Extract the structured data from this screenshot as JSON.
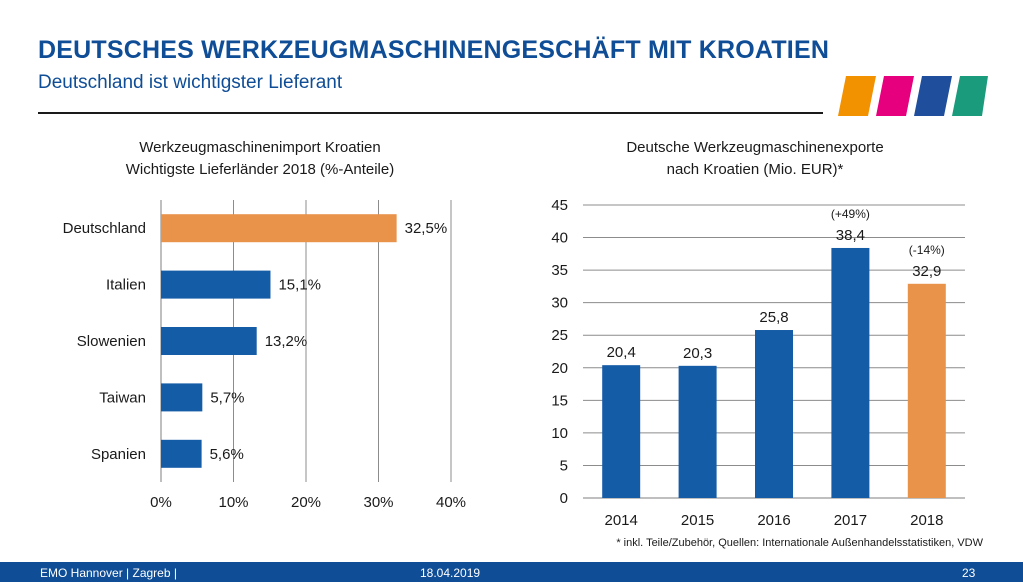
{
  "header": {
    "title": "DEUTSCHES WERKZEUGMASCHINENGESCHÄFT MIT KROATIEN",
    "subtitle": "Deutschland ist wichtigster Lieferant"
  },
  "logo": {
    "icon": "emo-color-stripes-logo",
    "colors": [
      "#f39200",
      "#e6007e",
      "#1f4e9c",
      "#1a9b7c"
    ]
  },
  "footer": {
    "event": "EMO Hannover | Zagreb |",
    "date": "18.04.2019",
    "page": "23"
  },
  "footnote": "* inkl. Teile/Zubehör, Quellen: Internationale Außenhandelsstatistiken, VDW",
  "chart_data": [
    {
      "type": "bar",
      "orientation": "horizontal",
      "title": "Werkzeugmaschinenimport Kroatien",
      "subtitle": "Wichtigste Lieferländer 2018 (%-Anteile)",
      "categories": [
        "Deutschland",
        "Italien",
        "Slowenien",
        "Taiwan",
        "Spanien"
      ],
      "values": [
        32.5,
        15.1,
        13.2,
        5.7,
        5.6
      ],
      "data_labels": [
        "32,5%",
        "15,1%",
        "13,2%",
        "5,7%",
        "5,6%"
      ],
      "xlim": [
        0,
        40
      ],
      "xticks": [
        "0%",
        "10%",
        "20%",
        "30%",
        "40%"
      ],
      "grid": "vertical",
      "colors": [
        "#e8924a",
        "#155ca6",
        "#155ca6",
        "#155ca6",
        "#155ca6"
      ]
    },
    {
      "type": "bar",
      "orientation": "vertical",
      "title": "Deutsche Werkzeugmaschinenexporte",
      "subtitle": "nach Kroatien (Mio. EUR)*",
      "categories": [
        "2014",
        "2015",
        "2016",
        "2017",
        "2018"
      ],
      "values": [
        20.4,
        20.3,
        25.8,
        38.4,
        32.9
      ],
      "data_labels": [
        "20,4",
        "20,3",
        "25,8",
        "38,4",
        "32,9"
      ],
      "annotations": [
        "",
        "",
        "",
        "(+49%)",
        "(-14%)"
      ],
      "ylim": [
        0,
        45
      ],
      "yticks": [
        "0",
        "5",
        "10",
        "15",
        "20",
        "25",
        "30",
        "35",
        "40",
        "45"
      ],
      "grid": "horizontal",
      "colors": [
        "#155ca6",
        "#155ca6",
        "#155ca6",
        "#155ca6",
        "#e8924a"
      ]
    }
  ]
}
